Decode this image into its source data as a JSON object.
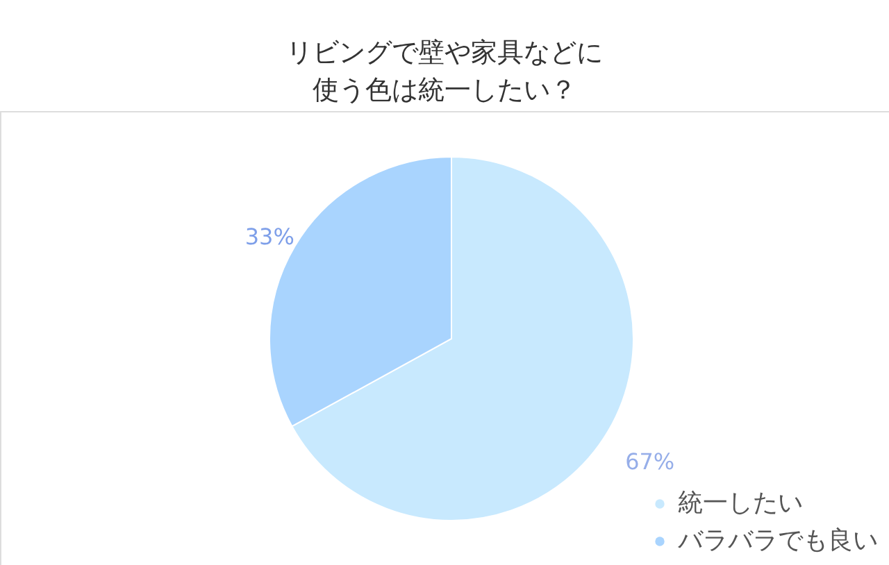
{
  "chart_data": {
    "type": "pie",
    "title": "リビングで壁や家具などに使う色は統一したい？",
    "categories": [
      "統一したい",
      "バラバラでも良い"
    ],
    "values": [
      67,
      33
    ],
    "colors": [
      "#c8e9fe",
      "#a9d4fe"
    ],
    "value_labels": [
      "67%",
      "33%"
    ],
    "legend": "bottom right"
  }
}
